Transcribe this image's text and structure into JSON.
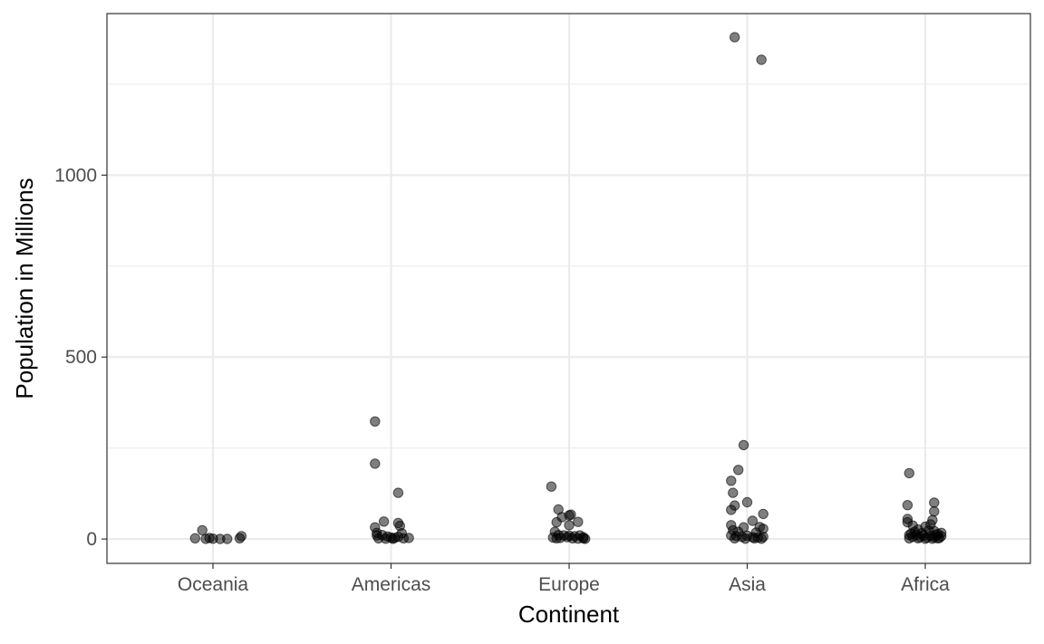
{
  "chart_data": {
    "type": "scatter",
    "title": "",
    "xlabel": "Continent",
    "ylabel": "Population in Millions",
    "categories": [
      "Oceania",
      "Americas",
      "Europe",
      "Asia",
      "Africa"
    ],
    "ylim": [
      -67,
      1444
    ],
    "y_ticks": [
      0,
      500,
      1000
    ],
    "y_tick_labels": [
      "0",
      "500",
      "1000"
    ],
    "grid": true,
    "legend": "none",
    "point_color": "#000000",
    "point_alpha": 0.5,
    "series": [
      {
        "points": [
          {
            "x": "Oceania",
            "jitter": -0.1,
            "y": 2
          },
          {
            "x": "Oceania",
            "jitter": -0.06,
            "y": 24
          },
          {
            "x": "Oceania",
            "jitter": -0.04,
            "y": 0.5
          },
          {
            "x": "Oceania",
            "jitter": -0.02,
            "y": 3
          },
          {
            "x": "Oceania",
            "jitter": 0.0,
            "y": 1
          },
          {
            "x": "Oceania",
            "jitter": 0.04,
            "y": 0.3
          },
          {
            "x": "Oceania",
            "jitter": 0.08,
            "y": 0.2
          },
          {
            "x": "Oceania",
            "jitter": 0.15,
            "y": 2
          },
          {
            "x": "Oceania",
            "jitter": 0.16,
            "y": 8
          },
          {
            "x": "Americas",
            "jitter": -0.09,
            "y": 323
          },
          {
            "x": "Americas",
            "jitter": -0.09,
            "y": 207
          },
          {
            "x": "Americas",
            "jitter": 0.04,
            "y": 127
          },
          {
            "x": "Americas",
            "jitter": -0.09,
            "y": 32
          },
          {
            "x": "Americas",
            "jitter": -0.04,
            "y": 48
          },
          {
            "x": "Americas",
            "jitter": 0.04,
            "y": 44
          },
          {
            "x": "Americas",
            "jitter": 0.05,
            "y": 36
          },
          {
            "x": "Americas",
            "jitter": -0.08,
            "y": 17
          },
          {
            "x": "Americas",
            "jitter": 0.06,
            "y": 16
          },
          {
            "x": "Americas",
            "jitter": -0.08,
            "y": 10
          },
          {
            "x": "Americas",
            "jitter": -0.05,
            "y": 11
          },
          {
            "x": "Americas",
            "jitter": -0.02,
            "y": 7
          },
          {
            "x": "Americas",
            "jitter": 0.0,
            "y": 4
          },
          {
            "x": "Americas",
            "jitter": 0.02,
            "y": 3
          },
          {
            "x": "Americas",
            "jitter": 0.04,
            "y": 6
          },
          {
            "x": "Americas",
            "jitter": 0.07,
            "y": 2
          },
          {
            "x": "Americas",
            "jitter": 0.1,
            "y": 3
          },
          {
            "x": "Americas",
            "jitter": -0.03,
            "y": 1
          },
          {
            "x": "Americas",
            "jitter": 0.01,
            "y": 0.5
          },
          {
            "x": "Americas",
            "jitter": -0.07,
            "y": 2
          },
          {
            "x": "Europe",
            "jitter": -0.1,
            "y": 144
          },
          {
            "x": "Europe",
            "jitter": -0.06,
            "y": 81
          },
          {
            "x": "Europe",
            "jitter": 0.0,
            "y": 65
          },
          {
            "x": "Europe",
            "jitter": 0.01,
            "y": 67
          },
          {
            "x": "Europe",
            "jitter": 0.05,
            "y": 47
          },
          {
            "x": "Europe",
            "jitter": -0.07,
            "y": 46
          },
          {
            "x": "Europe",
            "jitter": 0.0,
            "y": 38
          },
          {
            "x": "Europe",
            "jitter": -0.04,
            "y": 60
          },
          {
            "x": "Europe",
            "jitter": -0.08,
            "y": 20
          },
          {
            "x": "Europe",
            "jitter": -0.06,
            "y": 11
          },
          {
            "x": "Europe",
            "jitter": -0.03,
            "y": 10
          },
          {
            "x": "Europe",
            "jitter": 0.0,
            "y": 9
          },
          {
            "x": "Europe",
            "jitter": 0.03,
            "y": 8
          },
          {
            "x": "Europe",
            "jitter": 0.06,
            "y": 10
          },
          {
            "x": "Europe",
            "jitter": 0.08,
            "y": 5
          },
          {
            "x": "Europe",
            "jitter": -0.09,
            "y": 4
          },
          {
            "x": "Europe",
            "jitter": -0.05,
            "y": 3
          },
          {
            "x": "Europe",
            "jitter": -0.01,
            "y": 5
          },
          {
            "x": "Europe",
            "jitter": 0.02,
            "y": 2
          },
          {
            "x": "Europe",
            "jitter": 0.05,
            "y": 1
          },
          {
            "x": "Europe",
            "jitter": 0.08,
            "y": 2
          },
          {
            "x": "Europe",
            "jitter": -0.07,
            "y": 2
          },
          {
            "x": "Europe",
            "jitter": 0.09,
            "y": 0.5
          },
          {
            "x": "Asia",
            "jitter": -0.07,
            "y": 1379
          },
          {
            "x": "Asia",
            "jitter": 0.08,
            "y": 1317
          },
          {
            "x": "Asia",
            "jitter": -0.02,
            "y": 258
          },
          {
            "x": "Asia",
            "jitter": -0.05,
            "y": 190
          },
          {
            "x": "Asia",
            "jitter": -0.09,
            "y": 160
          },
          {
            "x": "Asia",
            "jitter": -0.08,
            "y": 127
          },
          {
            "x": "Asia",
            "jitter": 0.0,
            "y": 101
          },
          {
            "x": "Asia",
            "jitter": -0.07,
            "y": 92
          },
          {
            "x": "Asia",
            "jitter": -0.09,
            "y": 80
          },
          {
            "x": "Asia",
            "jitter": 0.09,
            "y": 69
          },
          {
            "x": "Asia",
            "jitter": 0.03,
            "y": 50
          },
          {
            "x": "Asia",
            "jitter": -0.09,
            "y": 38
          },
          {
            "x": "Asia",
            "jitter": -0.02,
            "y": 32
          },
          {
            "x": "Asia",
            "jitter": 0.07,
            "y": 33
          },
          {
            "x": "Asia",
            "jitter": 0.09,
            "y": 28
          },
          {
            "x": "Asia",
            "jitter": -0.08,
            "y": 24
          },
          {
            "x": "Asia",
            "jitter": -0.05,
            "y": 20
          },
          {
            "x": "Asia",
            "jitter": 0.05,
            "y": 18
          },
          {
            "x": "Asia",
            "jitter": -0.09,
            "y": 10
          },
          {
            "x": "Asia",
            "jitter": -0.06,
            "y": 8
          },
          {
            "x": "Asia",
            "jitter": -0.03,
            "y": 6
          },
          {
            "x": "Asia",
            "jitter": 0.0,
            "y": 9
          },
          {
            "x": "Asia",
            "jitter": 0.03,
            "y": 5
          },
          {
            "x": "Asia",
            "jitter": 0.06,
            "y": 4
          },
          {
            "x": "Asia",
            "jitter": 0.09,
            "y": 6
          },
          {
            "x": "Asia",
            "jitter": -0.07,
            "y": 2
          },
          {
            "x": "Asia",
            "jitter": -0.01,
            "y": 1
          },
          {
            "x": "Asia",
            "jitter": 0.04,
            "y": 2
          },
          {
            "x": "Asia",
            "jitter": 0.08,
            "y": 1
          },
          {
            "x": "Africa",
            "jitter": -0.09,
            "y": 181
          },
          {
            "x": "Africa",
            "jitter": 0.05,
            "y": 100
          },
          {
            "x": "Africa",
            "jitter": -0.1,
            "y": 93
          },
          {
            "x": "Africa",
            "jitter": 0.05,
            "y": 76
          },
          {
            "x": "Africa",
            "jitter": -0.1,
            "y": 55
          },
          {
            "x": "Africa",
            "jitter": 0.04,
            "y": 52
          },
          {
            "x": "Africa",
            "jitter": -0.1,
            "y": 46
          },
          {
            "x": "Africa",
            "jitter": 0.03,
            "y": 40
          },
          {
            "x": "Africa",
            "jitter": -0.07,
            "y": 37
          },
          {
            "x": "Africa",
            "jitter": 0.0,
            "y": 34
          },
          {
            "x": "Africa",
            "jitter": -0.04,
            "y": 26
          },
          {
            "x": "Africa",
            "jitter": 0.02,
            "y": 24
          },
          {
            "x": "Africa",
            "jitter": -0.06,
            "y": 20
          },
          {
            "x": "Africa",
            "jitter": 0.05,
            "y": 22
          },
          {
            "x": "Africa",
            "jitter": 0.09,
            "y": 17
          },
          {
            "x": "Africa",
            "jitter": -0.08,
            "y": 15
          },
          {
            "x": "Africa",
            "jitter": -0.02,
            "y": 16
          },
          {
            "x": "Africa",
            "jitter": 0.07,
            "y": 14
          },
          {
            "x": "Africa",
            "jitter": -0.09,
            "y": 11
          },
          {
            "x": "Africa",
            "jitter": -0.05,
            "y": 12
          },
          {
            "x": "Africa",
            "jitter": -0.01,
            "y": 10
          },
          {
            "x": "Africa",
            "jitter": 0.03,
            "y": 9
          },
          {
            "x": "Africa",
            "jitter": 0.06,
            "y": 11
          },
          {
            "x": "Africa",
            "jitter": 0.09,
            "y": 8
          },
          {
            "x": "Africa",
            "jitter": -0.07,
            "y": 6
          },
          {
            "x": "Africa",
            "jitter": -0.03,
            "y": 5
          },
          {
            "x": "Africa",
            "jitter": 0.01,
            "y": 4
          },
          {
            "x": "Africa",
            "jitter": 0.05,
            "y": 5
          },
          {
            "x": "Africa",
            "jitter": 0.08,
            "y": 3
          },
          {
            "x": "Africa",
            "jitter": -0.09,
            "y": 2
          },
          {
            "x": "Africa",
            "jitter": -0.04,
            "y": 2
          },
          {
            "x": "Africa",
            "jitter": 0.0,
            "y": 1
          },
          {
            "x": "Africa",
            "jitter": 0.04,
            "y": 1
          },
          {
            "x": "Africa",
            "jitter": 0.07,
            "y": 2
          }
        ]
      }
    ]
  }
}
